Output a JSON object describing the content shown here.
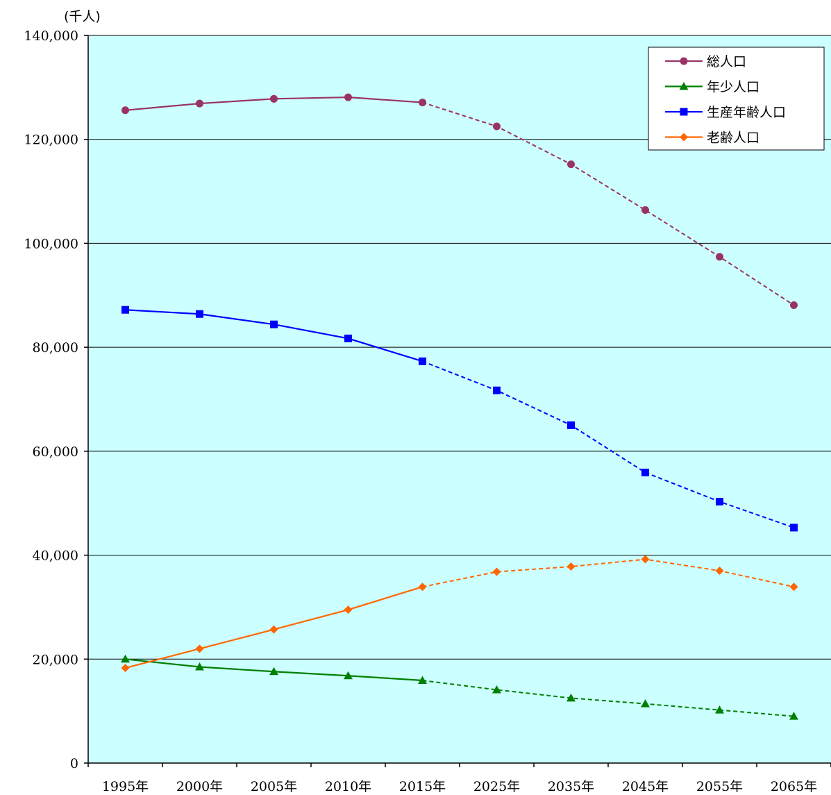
{
  "chart_data": {
    "type": "line",
    "y_unit": "(千人)",
    "categories": [
      "1995年",
      "2000年",
      "2005年",
      "2010年",
      "2015年",
      "2025年",
      "2035年",
      "2045年",
      "2055年",
      "2065年"
    ],
    "ylim": [
      0,
      140000
    ],
    "yticks": [
      0,
      20000,
      40000,
      60000,
      80000,
      100000,
      120000,
      140000
    ],
    "ytick_labels": [
      "0",
      "20,000",
      "40,000",
      "60,000",
      "80,000",
      "100,000",
      "120,000",
      "140,000"
    ],
    "grid": true,
    "background_color": "#ccffff",
    "legend_position": "top-right",
    "solid_until_index": 4,
    "series": [
      {
        "name": "総人口",
        "color": "#993366",
        "marker": "circle",
        "values": [
          125600,
          126900,
          127800,
          128100,
          127100,
          122500,
          115200,
          106400,
          97400,
          88100
        ]
      },
      {
        "name": "年少人口",
        "color": "#008000",
        "marker": "triangle",
        "values": [
          20000,
          18500,
          17600,
          16800,
          15900,
          14100,
          12500,
          11400,
          10200,
          9000
        ]
      },
      {
        "name": "生産年齢人口",
        "color": "#0000ff",
        "marker": "square",
        "values": [
          87200,
          86400,
          84400,
          81700,
          77300,
          71700,
          65000,
          55900,
          50300,
          45300
        ]
      },
      {
        "name": "老齢人口",
        "color": "#ff6600",
        "marker": "diamond",
        "values": [
          18300,
          22000,
          25700,
          29500,
          33900,
          36800,
          37800,
          39200,
          37000,
          33900
        ]
      }
    ]
  }
}
